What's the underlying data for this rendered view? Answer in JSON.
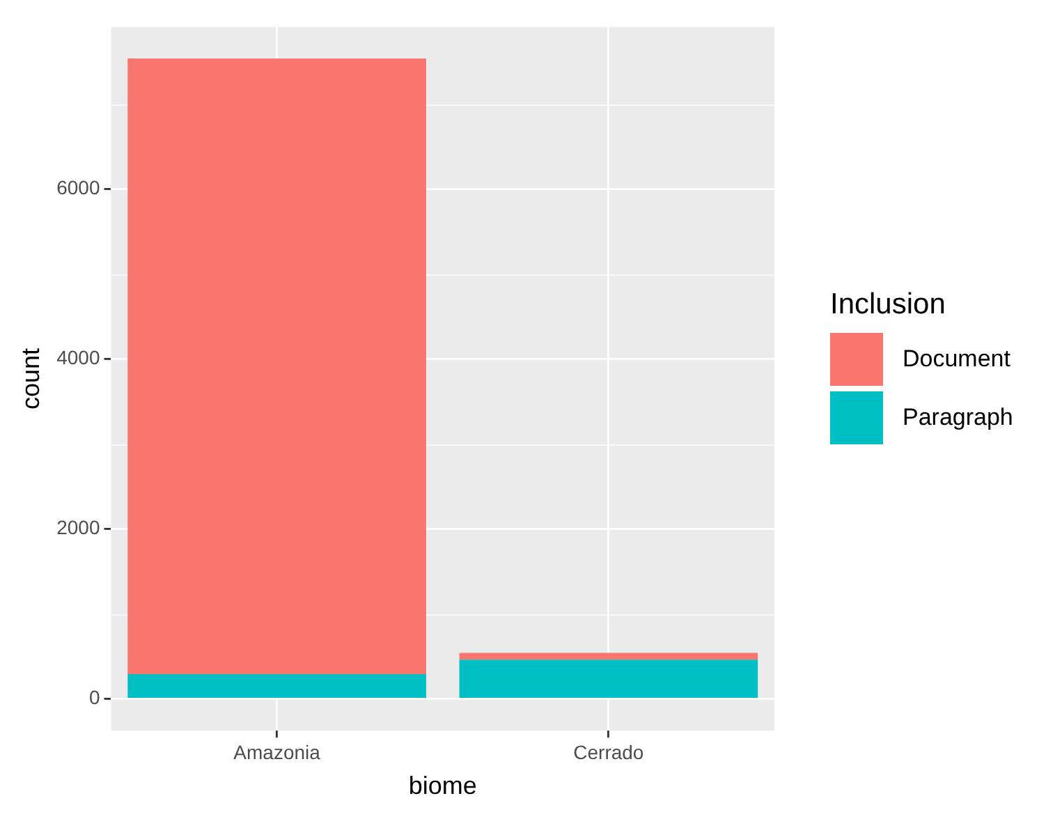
{
  "chart_data": {
    "type": "bar",
    "xlabel": "biome",
    "ylabel": "count",
    "legend_title": "Inclusion",
    "categories": [
      "Amazonia",
      "Cerrado"
    ],
    "series": [
      {
        "name": "Paragraph",
        "color": "#00bfc4",
        "values": [
          290,
          460
        ]
      },
      {
        "name": "Document",
        "color": "#f8766d",
        "values": [
          7250,
          80
        ]
      }
    ],
    "stacked": true,
    "ylim": [
      -375,
      7910
    ],
    "yticks": [
      0,
      2000,
      4000,
      6000
    ],
    "grid": true,
    "legend": "right"
  }
}
